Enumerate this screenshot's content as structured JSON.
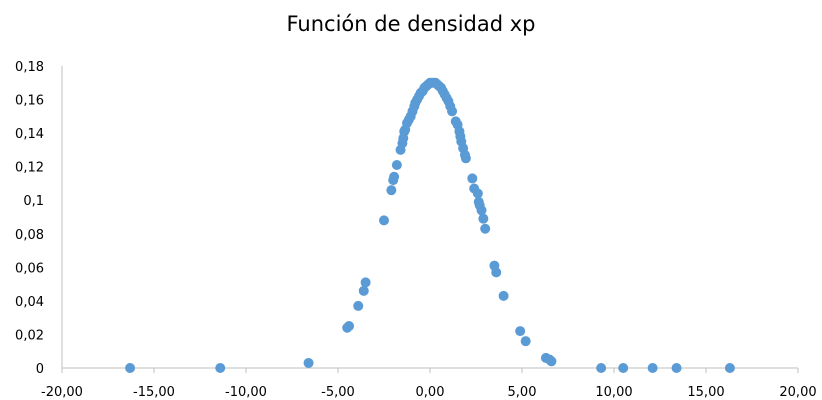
{
  "chart_data": {
    "type": "scatter",
    "title": "Función de densidad xp",
    "xlabel": "",
    "ylabel": "",
    "xlim": [
      -20,
      20
    ],
    "ylim": [
      0,
      0.18
    ],
    "grid": false,
    "legend": "none",
    "marker_color": "#5B9BD5",
    "axis_color": "#bfbfbf",
    "x_ticks": [
      "-20,00",
      "-15,00",
      "-10,00",
      "-5,00",
      "0,00",
      "5,00",
      "10,00",
      "15,00",
      "20,00"
    ],
    "x_tick_values": [
      -20,
      -15,
      -10,
      -5,
      0,
      5,
      10,
      15,
      20
    ],
    "y_ticks": [
      "0",
      "0,02",
      "0,04",
      "0,06",
      "0,08",
      "0,1",
      "0,12",
      "0,14",
      "0,16",
      "0,18"
    ],
    "y_tick_values": [
      0,
      0.02,
      0.04,
      0.06,
      0.08,
      0.1,
      0.12,
      0.14,
      0.16,
      0.18
    ],
    "series": [
      {
        "points": [
          [
            -16.3,
            0.0
          ],
          [
            -11.4,
            0.0
          ],
          [
            -6.6,
            0.003
          ],
          [
            -4.5,
            0.024
          ],
          [
            -4.4,
            0.025
          ],
          [
            -3.9,
            0.037
          ],
          [
            -3.6,
            0.046
          ],
          [
            -3.5,
            0.051
          ],
          [
            -2.5,
            0.088
          ],
          [
            -2.1,
            0.106
          ],
          [
            -2.0,
            0.112
          ],
          [
            -1.95,
            0.114
          ],
          [
            -1.8,
            0.121
          ],
          [
            -1.6,
            0.13
          ],
          [
            -1.5,
            0.134
          ],
          [
            -1.45,
            0.137
          ],
          [
            -1.4,
            0.141
          ],
          [
            -1.35,
            0.142
          ],
          [
            -1.25,
            0.146
          ],
          [
            -1.15,
            0.148
          ],
          [
            -1.05,
            0.15
          ],
          [
            -0.95,
            0.153
          ],
          [
            -0.85,
            0.156
          ],
          [
            -0.8,
            0.158
          ],
          [
            -0.7,
            0.16
          ],
          [
            -0.6,
            0.162
          ],
          [
            -0.5,
            0.164
          ],
          [
            -0.4,
            0.165
          ],
          [
            -0.3,
            0.167
          ],
          [
            -0.2,
            0.168
          ],
          [
            -0.1,
            0.169
          ],
          [
            0.0,
            0.17
          ],
          [
            0.1,
            0.17
          ],
          [
            0.2,
            0.17
          ],
          [
            0.3,
            0.17
          ],
          [
            0.4,
            0.169
          ],
          [
            0.5,
            0.168
          ],
          [
            0.6,
            0.167
          ],
          [
            0.7,
            0.165
          ],
          [
            0.8,
            0.163
          ],
          [
            0.9,
            0.161
          ],
          [
            1.0,
            0.159
          ],
          [
            1.1,
            0.156
          ],
          [
            1.2,
            0.153
          ],
          [
            1.4,
            0.147
          ],
          [
            1.5,
            0.145
          ],
          [
            1.6,
            0.141
          ],
          [
            1.65,
            0.138
          ],
          [
            1.7,
            0.135
          ],
          [
            1.8,
            0.131
          ],
          [
            1.9,
            0.127
          ],
          [
            1.95,
            0.125
          ],
          [
            2.3,
            0.113
          ],
          [
            2.4,
            0.107
          ],
          [
            2.6,
            0.104
          ],
          [
            2.65,
            0.099
          ],
          [
            2.7,
            0.097
          ],
          [
            2.8,
            0.094
          ],
          [
            2.9,
            0.089
          ],
          [
            3.0,
            0.083
          ],
          [
            3.5,
            0.061
          ],
          [
            3.6,
            0.057
          ],
          [
            4.0,
            0.043
          ],
          [
            4.9,
            0.022
          ],
          [
            5.2,
            0.016
          ],
          [
            6.3,
            0.006
          ],
          [
            6.5,
            0.005
          ],
          [
            6.6,
            0.004
          ],
          [
            9.3,
            0.0
          ],
          [
            10.5,
            0.0
          ],
          [
            12.1,
            0.0
          ],
          [
            13.4,
            0.0
          ],
          [
            16.3,
            0.0
          ]
        ]
      }
    ]
  }
}
